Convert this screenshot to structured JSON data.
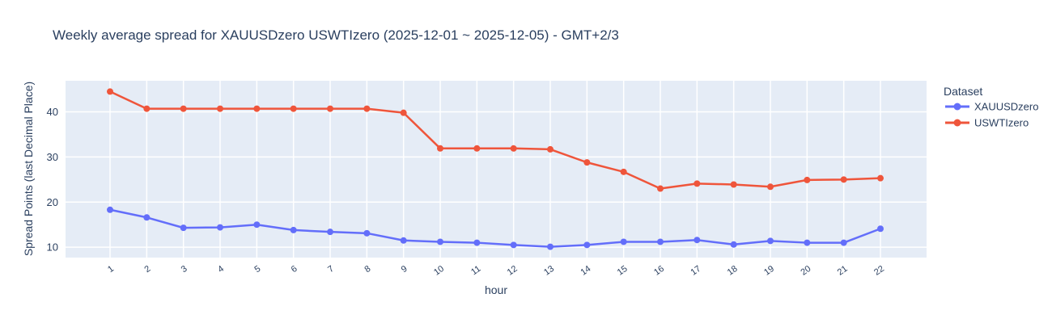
{
  "chart_data": {
    "type": "line",
    "title": "Weekly average spread for  XAUUSDzero USWTIzero (2025-12-01 ~ 2025-12-05) - GMT+2/3",
    "xlabel": "hour",
    "ylabel": "Spread Points (last Decimal Place)",
    "legend_title": "Dataset",
    "legend_position": "right",
    "grid": true,
    "x": [
      1,
      2,
      3,
      4,
      5,
      6,
      7,
      8,
      9,
      10,
      11,
      12,
      13,
      14,
      15,
      16,
      17,
      18,
      19,
      20,
      21,
      22
    ],
    "series": [
      {
        "name": "XAUUSDzero",
        "color": "#636EFA",
        "values": [
          18.3,
          16.6,
          14.3,
          14.4,
          15.0,
          13.8,
          13.4,
          13.1,
          11.5,
          11.2,
          11.0,
          10.5,
          10.1,
          10.5,
          11.2,
          11.2,
          11.6,
          10.6,
          11.4,
          11.0,
          11.0,
          14.1
        ]
      },
      {
        "name": "USWTIzero",
        "color": "#EF553B",
        "values": [
          44.5,
          40.7,
          40.7,
          40.7,
          40.7,
          40.7,
          40.7,
          40.7,
          39.8,
          31.9,
          31.9,
          31.9,
          31.7,
          28.8,
          26.7,
          23.0,
          24.1,
          23.9,
          23.4,
          24.9,
          25.0,
          25.3
        ]
      }
    ],
    "ylim": [
      7.7,
      46.9
    ],
    "y_ticks": [
      10,
      20,
      30,
      40
    ],
    "plot_bg": "#E5ECF6",
    "grid_color": "#FFFFFF",
    "font_color": "#2a3f5f"
  }
}
